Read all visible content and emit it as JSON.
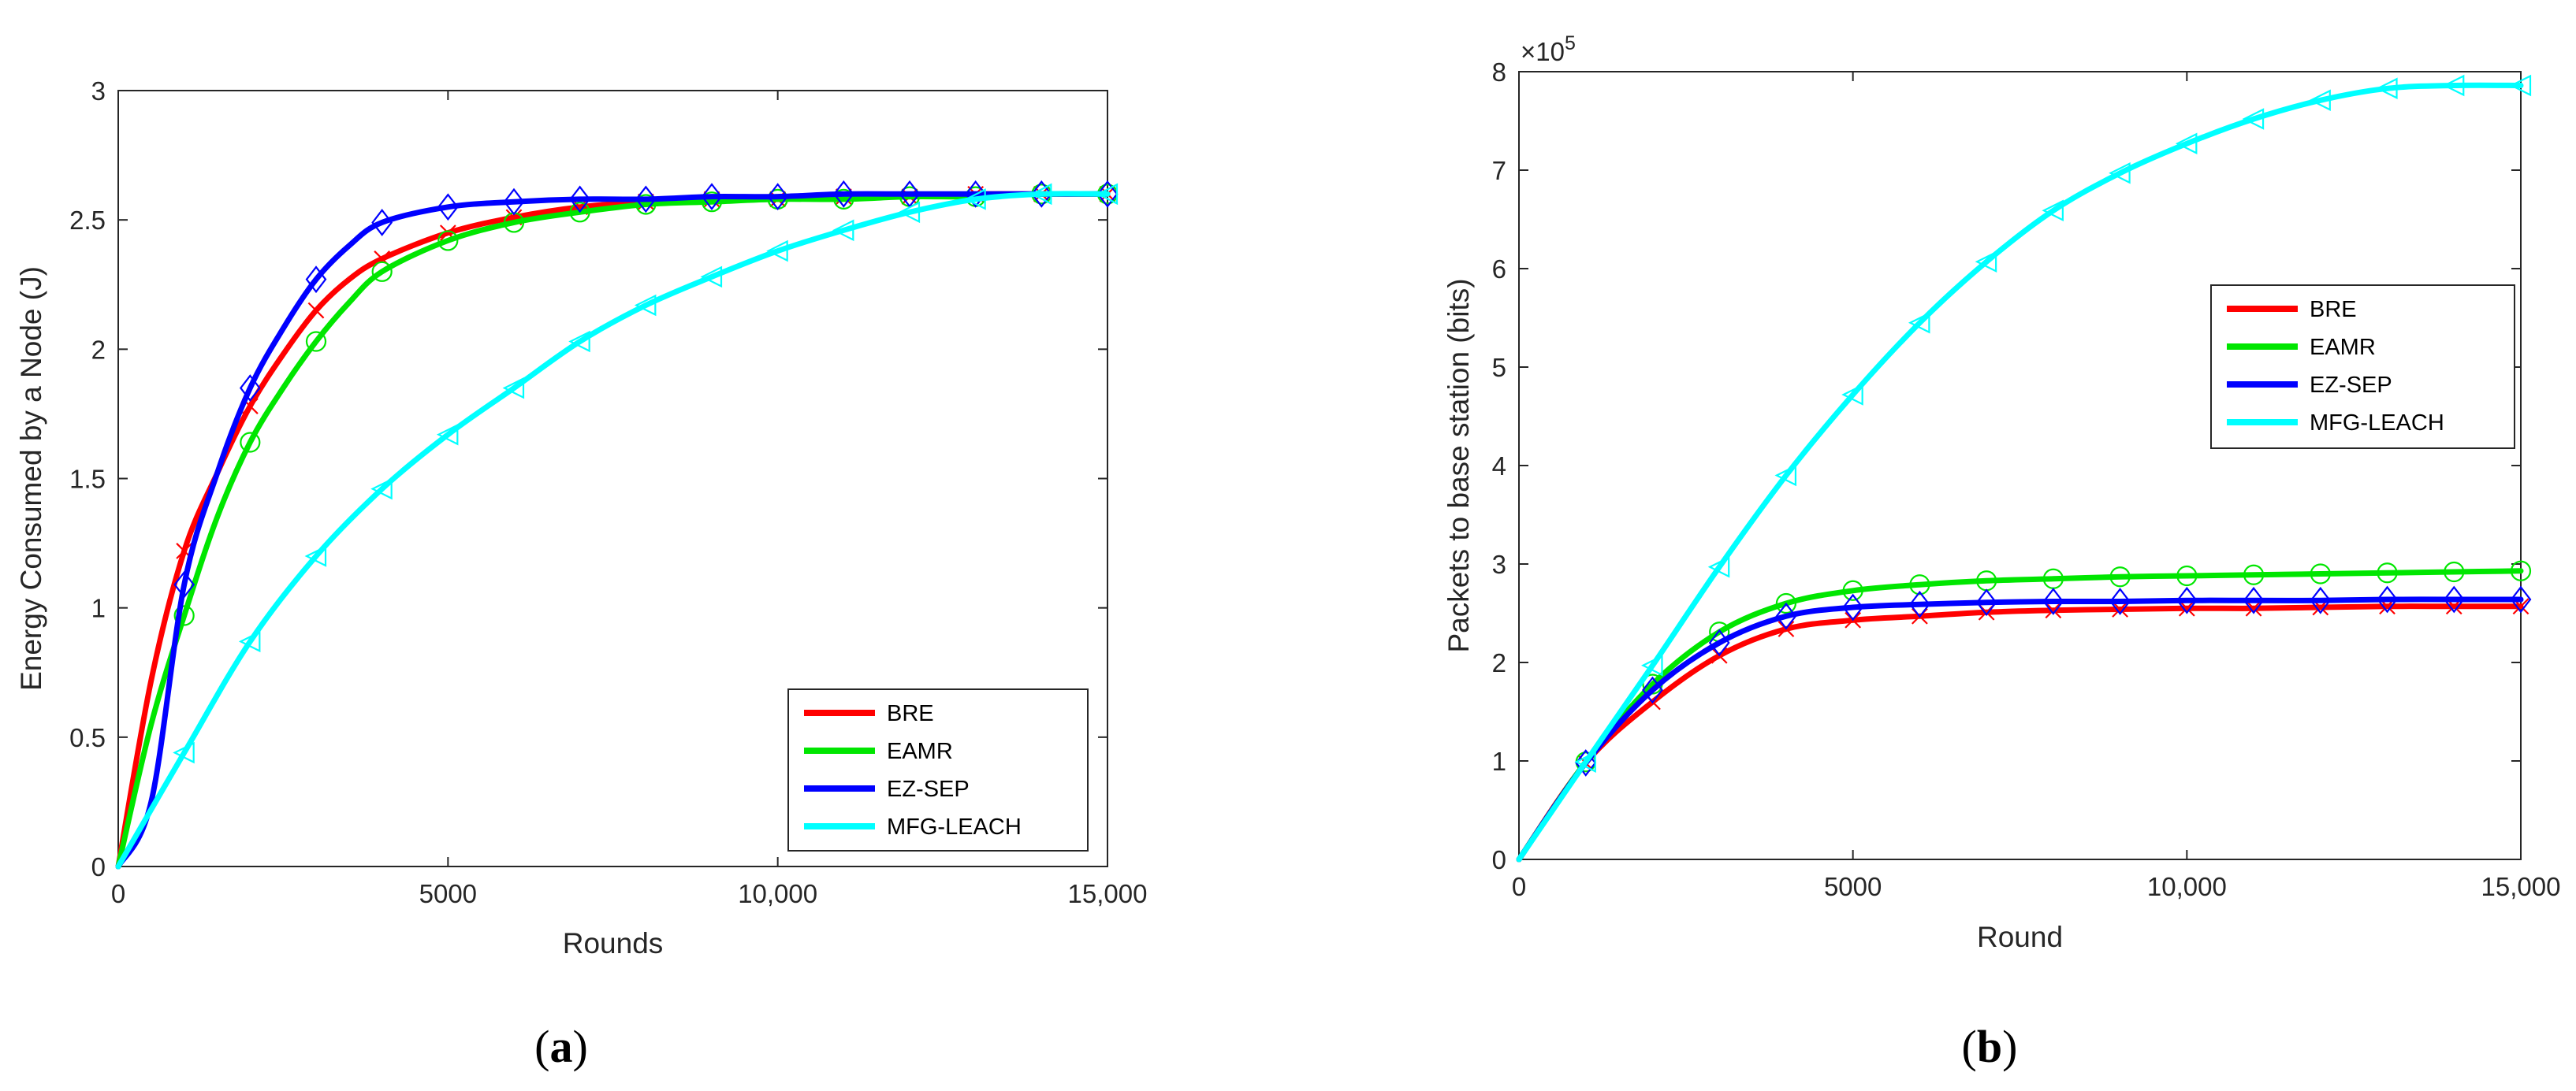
{
  "chart_data": [
    {
      "type": "line",
      "caption": {
        "open": "(",
        "letter": "a",
        "close": ")"
      },
      "xlabel": "Rounds",
      "ylabel": "Energy Consumed by a Node (J)",
      "xlim": [
        0,
        15000
      ],
      "ylim": [
        0,
        3
      ],
      "xticks": [
        0,
        5000,
        10000,
        15000
      ],
      "xtick_labels": [
        "0",
        "5000",
        "10,000",
        "15,000"
      ],
      "yticks": [
        0,
        0.5,
        1,
        1.5,
        2,
        2.5,
        3
      ],
      "ytick_labels": [
        "0",
        "0.5",
        "1",
        "1.5",
        "2",
        "2.5",
        "3"
      ],
      "exponent_label": null,
      "legend_position": "bottom-right",
      "series": [
        {
          "name": "BRE",
          "color": "#ff0000",
          "marker": "x",
          "x": [
            0,
            500,
            1000,
            1500,
            2000,
            2500,
            3000,
            3500,
            4000,
            5000,
            6000,
            7000,
            8000,
            9000,
            10000,
            11000,
            12000,
            13000,
            14000,
            15000
          ],
          "y": [
            0,
            0.72,
            1.22,
            1.52,
            1.78,
            1.98,
            2.15,
            2.27,
            2.35,
            2.45,
            2.51,
            2.55,
            2.57,
            2.58,
            2.58,
            2.59,
            2.59,
            2.6,
            2.6,
            2.6
          ]
        },
        {
          "name": "EAMR",
          "color": "#00e600",
          "marker": "o",
          "x": [
            0,
            500,
            1000,
            1500,
            2000,
            2500,
            3000,
            3500,
            4000,
            5000,
            6000,
            7000,
            8000,
            9000,
            10000,
            11000,
            12000,
            13000,
            14000,
            15000
          ],
          "y": [
            0,
            0.55,
            0.97,
            1.35,
            1.64,
            1.85,
            2.03,
            2.18,
            2.3,
            2.42,
            2.49,
            2.53,
            2.56,
            2.57,
            2.58,
            2.58,
            2.59,
            2.59,
            2.6,
            2.6
          ]
        },
        {
          "name": "EZ-SEP",
          "color": "#0000ff",
          "marker": "diamond",
          "x": [
            0,
            500,
            1000,
            1500,
            2000,
            2500,
            3000,
            3500,
            4000,
            5000,
            6000,
            7000,
            8000,
            9000,
            10000,
            11000,
            12000,
            13000,
            14000,
            15000
          ],
          "y": [
            0,
            0.25,
            1.09,
            1.52,
            1.85,
            2.08,
            2.27,
            2.4,
            2.49,
            2.55,
            2.57,
            2.58,
            2.58,
            2.59,
            2.59,
            2.6,
            2.6,
            2.6,
            2.6,
            2.6
          ]
        },
        {
          "name": "MFG-LEACH",
          "color": "#00ffff",
          "marker": "triangle-left",
          "x": [
            0,
            1000,
            2000,
            3000,
            4000,
            5000,
            6000,
            7000,
            8000,
            9000,
            10000,
            11000,
            12000,
            13000,
            14000,
            15000
          ],
          "y": [
            0,
            0.44,
            0.87,
            1.2,
            1.46,
            1.67,
            1.85,
            2.03,
            2.17,
            2.28,
            2.38,
            2.46,
            2.53,
            2.58,
            2.6,
            2.6
          ]
        }
      ]
    },
    {
      "type": "line",
      "caption": {
        "open": "(",
        "letter": "b",
        "close": ")"
      },
      "xlabel": "Round",
      "ylabel": "Packets to base station (bits)",
      "xlim": [
        0,
        15000
      ],
      "ylim": [
        0,
        8
      ],
      "xticks": [
        0,
        5000,
        10000,
        15000
      ],
      "xtick_labels": [
        "0",
        "5000",
        "10,000",
        "15,000"
      ],
      "yticks": [
        0,
        1,
        2,
        3,
        4,
        5,
        6,
        7,
        8
      ],
      "ytick_labels": [
        "0",
        "1",
        "2",
        "3",
        "4",
        "5",
        "6",
        "7",
        "8"
      ],
      "exponent_label": {
        "base": "×10",
        "power": "5"
      },
      "legend_position": "center-right",
      "series": [
        {
          "name": "BRE",
          "color": "#ff0000",
          "marker": "x",
          "x": [
            0,
            1000,
            2000,
            3000,
            4000,
            5000,
            6000,
            7000,
            8000,
            9000,
            10000,
            11000,
            12000,
            13000,
            14000,
            15000
          ],
          "y": [
            0,
            0.98,
            1.6,
            2.07,
            2.34,
            2.43,
            2.47,
            2.51,
            2.53,
            2.54,
            2.55,
            2.55,
            2.56,
            2.57,
            2.57,
            2.57
          ]
        },
        {
          "name": "EAMR",
          "color": "#00e600",
          "marker": "o",
          "x": [
            0,
            1000,
            2000,
            3000,
            4000,
            5000,
            6000,
            7000,
            8000,
            9000,
            10000,
            11000,
            12000,
            13000,
            14000,
            15000
          ],
          "y": [
            0,
            0.99,
            1.78,
            2.31,
            2.6,
            2.73,
            2.79,
            2.83,
            2.85,
            2.87,
            2.88,
            2.89,
            2.9,
            2.91,
            2.92,
            2.93
          ]
        },
        {
          "name": "EZ-SEP",
          "color": "#0000ff",
          "marker": "diamond",
          "x": [
            0,
            1000,
            2000,
            3000,
            4000,
            5000,
            6000,
            7000,
            8000,
            9000,
            10000,
            11000,
            12000,
            13000,
            14000,
            15000
          ],
          "y": [
            0,
            0.98,
            1.72,
            2.2,
            2.47,
            2.56,
            2.59,
            2.61,
            2.62,
            2.62,
            2.63,
            2.63,
            2.63,
            2.64,
            2.64,
            2.64
          ]
        },
        {
          "name": "MFG-LEACH",
          "color": "#00ffff",
          "marker": "triangle-left",
          "x": [
            0,
            1000,
            2000,
            3000,
            4000,
            5000,
            6000,
            7000,
            8000,
            9000,
            10000,
            11000,
            12000,
            13000,
            14000,
            15000
          ],
          "y": [
            0,
            0.99,
            1.97,
            2.97,
            3.9,
            4.72,
            5.45,
            6.07,
            6.59,
            6.97,
            7.27,
            7.52,
            7.71,
            7.83,
            7.86,
            7.86
          ]
        }
      ]
    }
  ]
}
